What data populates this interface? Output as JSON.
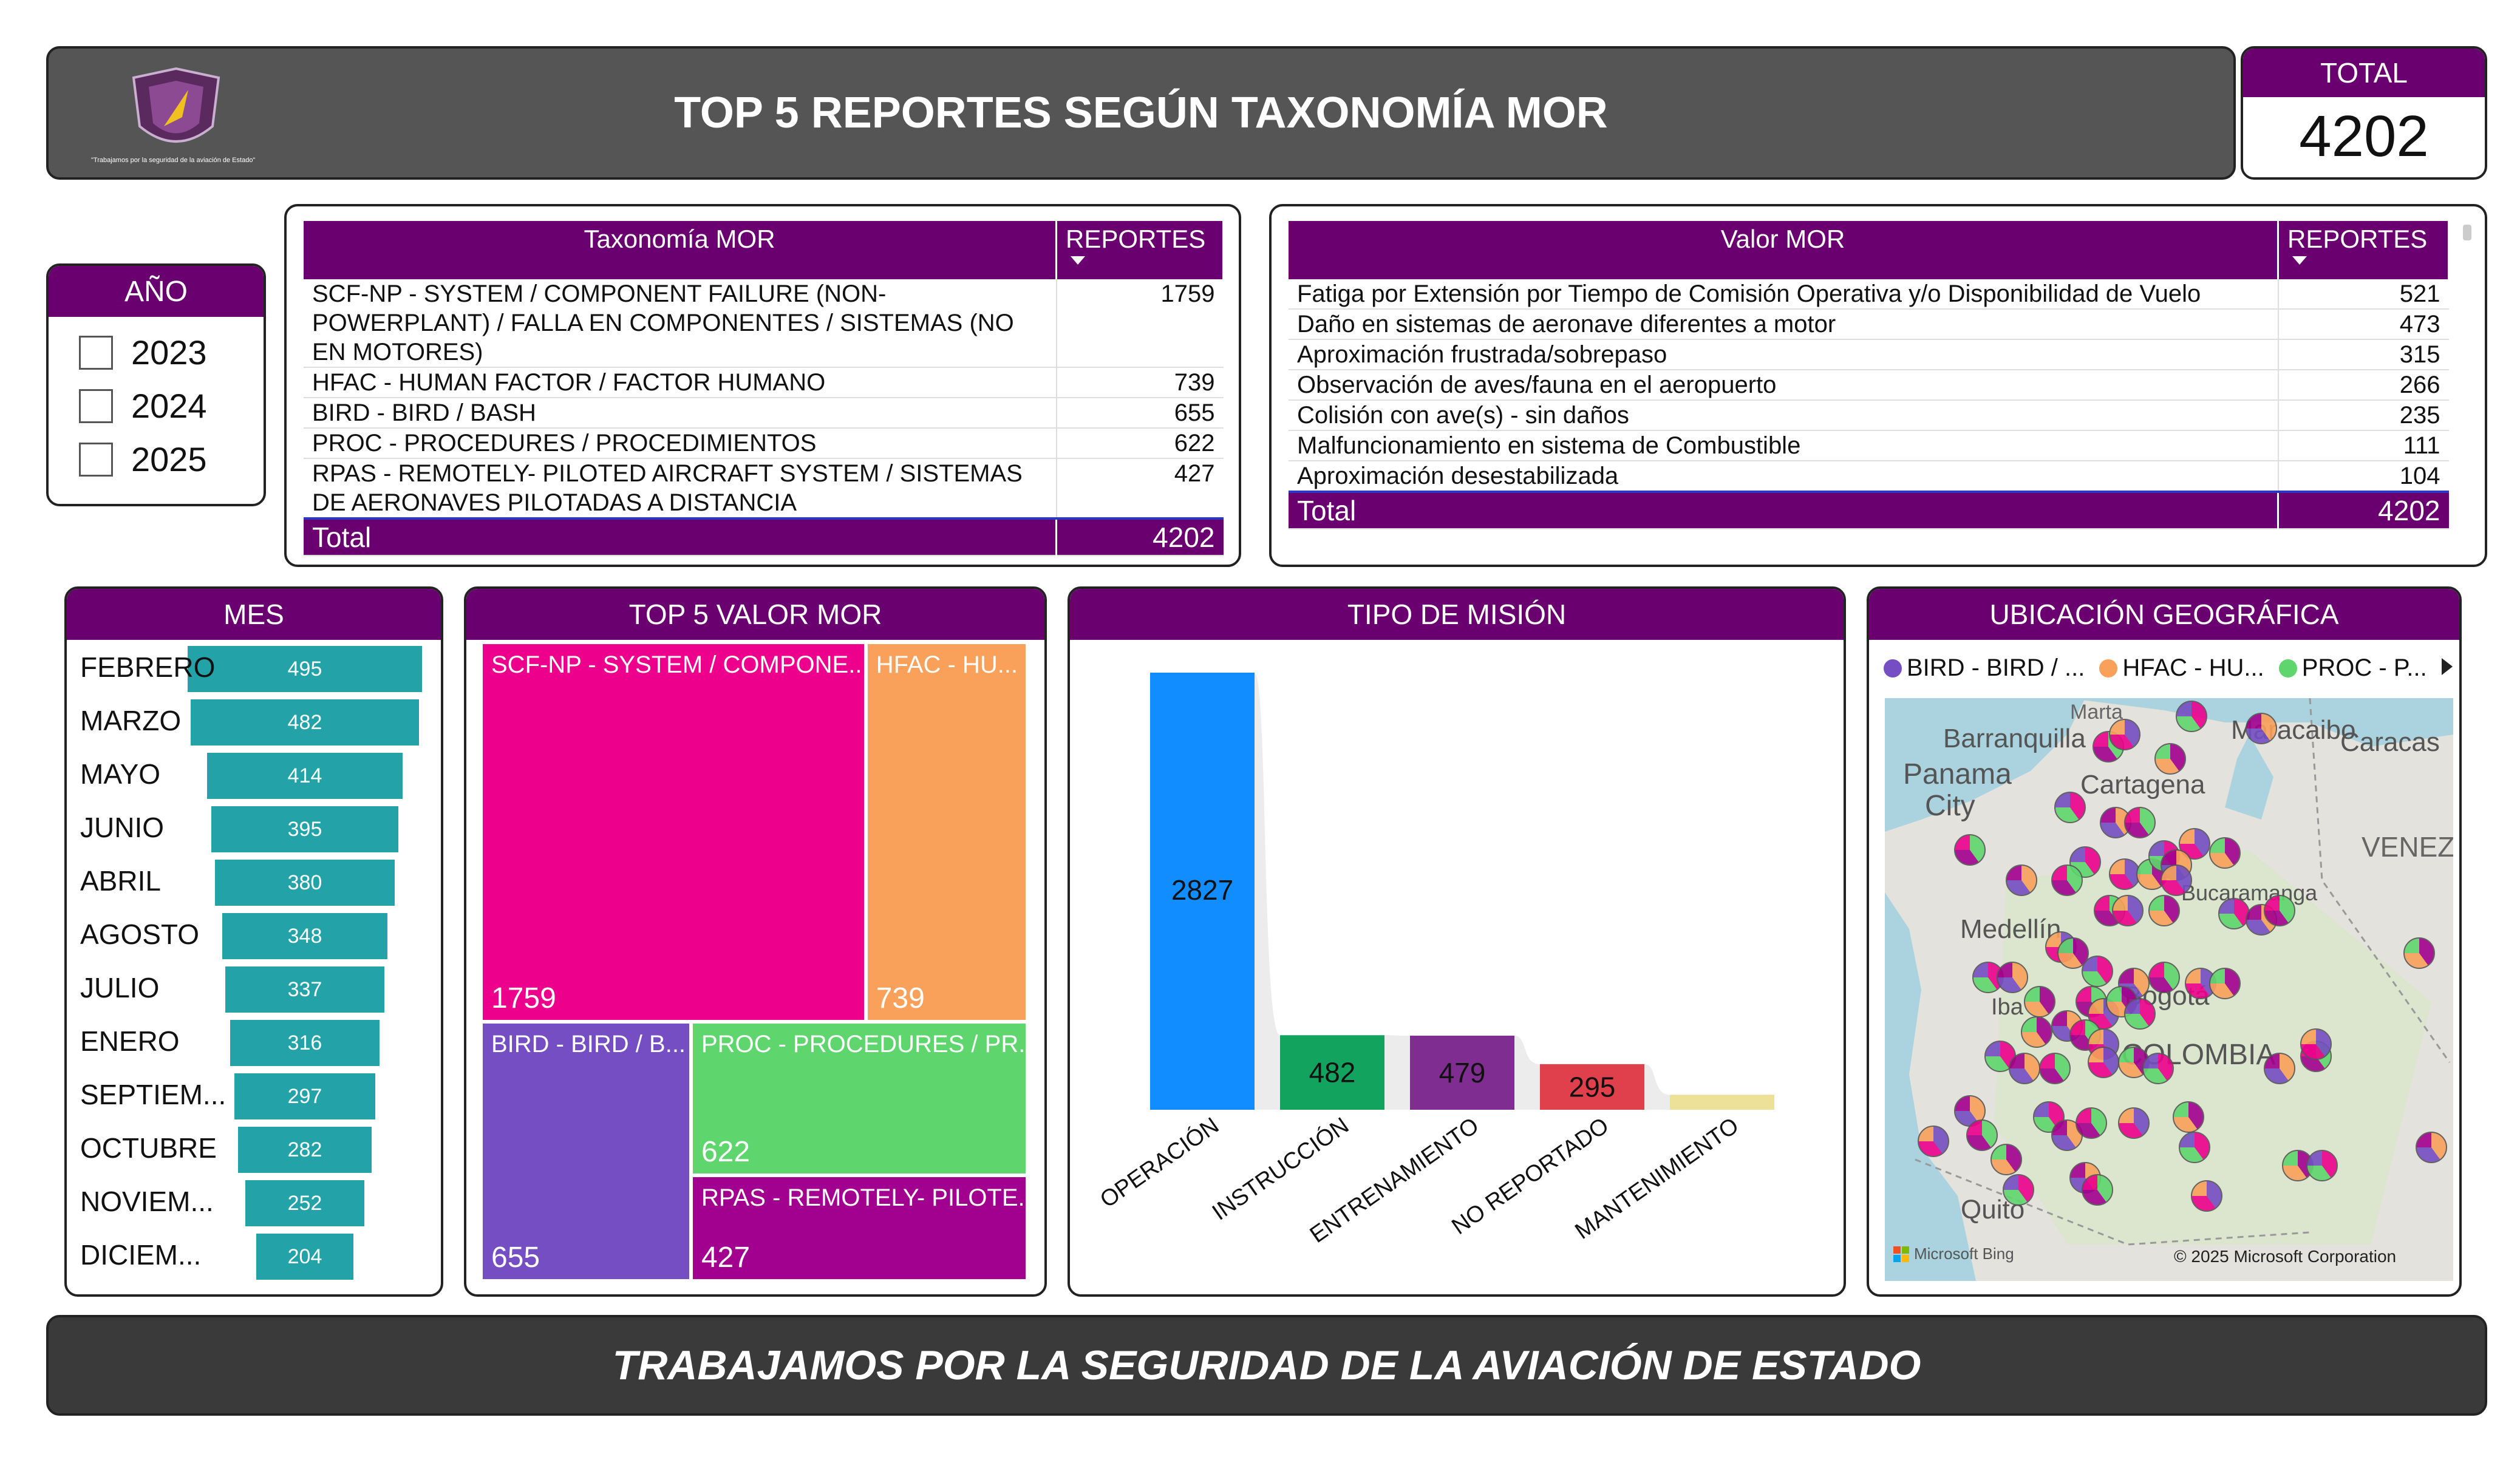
{
  "header": {
    "title": "TOP 5 REPORTES SEGÚN TAXONOMÍA MOR",
    "logo_tagline": "\"Trabajamos por la seguridad de la aviación de Estado\""
  },
  "total_card": {
    "label": "TOTAL",
    "value": "4202"
  },
  "year_filter": {
    "title": "AÑO",
    "options": [
      "2023",
      "2024",
      "2025"
    ]
  },
  "taxonomy_table": {
    "headers": [
      "Taxonomía MOR",
      "REPORTES"
    ],
    "rows": [
      {
        "name": "SCF-NP - SYSTEM / COMPONENT FAILURE (NON-POWERPLANT) / FALLA EN COMPONENTES / SISTEMAS (NO EN MOTORES)",
        "value": "1759"
      },
      {
        "name": "HFAC - HUMAN FACTOR / FACTOR HUMANO",
        "value": "739"
      },
      {
        "name": "BIRD - BIRD / BASH",
        "value": "655"
      },
      {
        "name": "PROC - PROCEDURES / PROCEDIMIENTOS",
        "value": "622"
      },
      {
        "name": "RPAS - REMOTELY- PILOTED AIRCRAFT SYSTEM / SISTEMAS DE AERONAVES PILOTADAS A DISTANCIA",
        "value": "427"
      }
    ],
    "total_label": "Total",
    "total_value": "4202"
  },
  "valor_table": {
    "headers": [
      "Valor MOR",
      "REPORTES"
    ],
    "rows": [
      {
        "name": "Fatiga por Extensión por Tiempo de Comisión Operativa y/o Disponibilidad de Vuelo",
        "value": "521"
      },
      {
        "name": "Daño en sistemas de aeronave diferentes a motor",
        "value": "473"
      },
      {
        "name": "Aproximación frustrada/sobrepaso",
        "value": "315"
      },
      {
        "name": "Observación de aves/fauna en el aeropuerto",
        "value": "266"
      },
      {
        "name": "Colisión con ave(s) - sin daños",
        "value": "235"
      },
      {
        "name": "Malfuncionamiento en sistema de Combustible",
        "value": "111"
      },
      {
        "name": "Aproximación desestabilizada",
        "value": "104"
      }
    ],
    "total_label": "Total",
    "total_value": "4202"
  },
  "chart_data": [
    {
      "type": "bar",
      "title": "MES",
      "categories": [
        "FEBRERO",
        "MARZO",
        "MAYO",
        "JUNIO",
        "ABRIL",
        "AGOSTO",
        "JULIO",
        "ENERO",
        "SEPTIEM...",
        "OCTUBRE",
        "NOVIEM...",
        "DICIEM..."
      ],
      "values": [
        495,
        482,
        414,
        395,
        380,
        348,
        337,
        316,
        297,
        282,
        252,
        204
      ],
      "color": "#23a3a8"
    },
    {
      "type": "treemap",
      "title": "TOP 5 VALOR MOR",
      "categories": [
        "SCF-NP - SYSTEM / COMPONE...",
        "HFAC - HU...",
        "BIRD - BIRD / B...",
        "PROC - PROCEDURES / PR...",
        "RPAS - REMOTELY- PILOTE..."
      ],
      "values": [
        1759,
        739,
        655,
        622,
        427
      ],
      "colors": [
        "#ec008c",
        "#f9a05a",
        "#744ec2",
        "#5ed66d",
        "#a2008e"
      ]
    },
    {
      "type": "bar",
      "title": "TIPO DE MISIÓN",
      "categories": [
        "OPERACIÓN",
        "INSTRUCCIÓN",
        "ENTRENAMIENTO",
        "NO REPORTADO",
        "MANTENIMIENTO"
      ],
      "values": [
        2827,
        482,
        479,
        295,
        97
      ],
      "labels": [
        "2827",
        "482",
        "479",
        "295",
        ""
      ],
      "colors": [
        "#118dff",
        "#12a35e",
        "#7f2d91",
        "#e0404c",
        "#ede19a"
      ]
    }
  ],
  "map": {
    "title": "UBICACIÓN GEOGRÁFICA",
    "legend": [
      {
        "label": "BIRD - BIRD / ...",
        "color": "#744ec2"
      },
      {
        "label": "HFAC - HU...",
        "color": "#f9a05a"
      },
      {
        "label": "PROC - P...",
        "color": "#5ed66d"
      }
    ],
    "places": [
      "Marta",
      "Barranquilla",
      "Maracaibo",
      "Caracas",
      "Panama",
      "City",
      "Cartagena",
      "VENEZ",
      "Bucaramanga",
      "Medellín",
      "Bogotá",
      "Iba",
      "COLOMBIA",
      "Quito"
    ],
    "bing": "Microsoft Bing",
    "copyright": "© 2025 Microsoft Corporation"
  },
  "footer": {
    "text": "TRABAJAMOS POR LA SEGURIDAD DE LA AVIACIÓN DE ESTADO"
  }
}
